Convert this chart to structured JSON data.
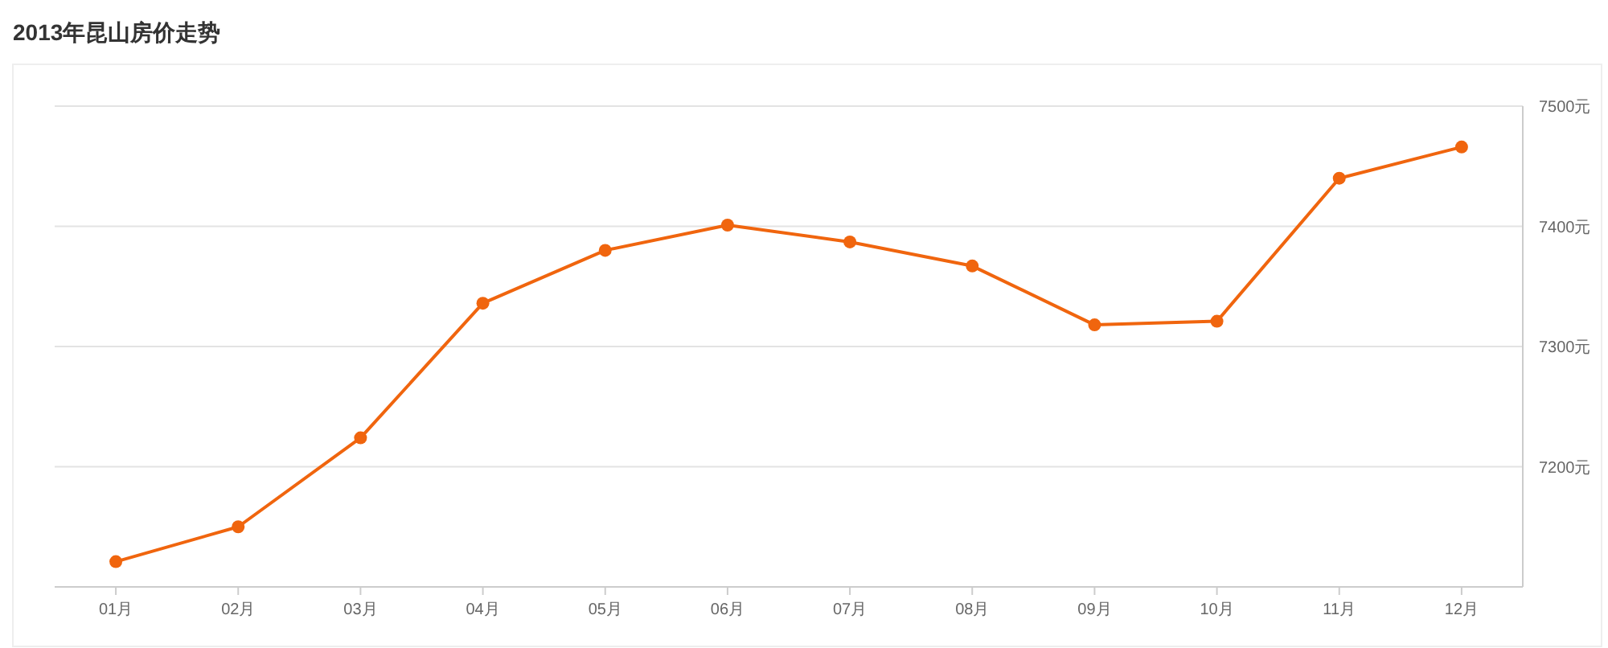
{
  "chart_data": {
    "type": "line",
    "title": "2013年昆山房价走势",
    "categories": [
      "01月",
      "02月",
      "03月",
      "04月",
      "05月",
      "06月",
      "07月",
      "08月",
      "09月",
      "10月",
      "11月",
      "12月"
    ],
    "series": [
      {
        "color": "#f0650e",
        "values": [
          7121,
          7150,
          7224,
          7336,
          7380,
          7401,
          7387,
          7367,
          7318,
          7321,
          7440,
          7466
        ]
      }
    ],
    "ylim": [
      7100,
      7500
    ],
    "yticks": [
      {
        "value": 7200,
        "label": "7200元"
      },
      {
        "value": 7300,
        "label": "7300元"
      },
      {
        "value": 7400,
        "label": "7400元"
      },
      {
        "value": 7500,
        "label": "7500元"
      }
    ],
    "grid": "y",
    "marker": "circle",
    "line_style": "solid"
  }
}
